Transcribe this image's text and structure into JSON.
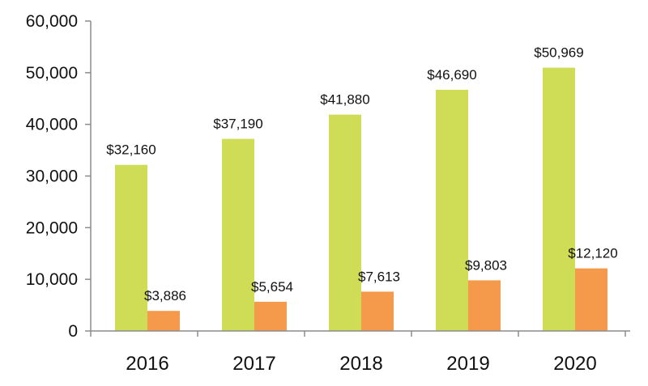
{
  "chart_data": {
    "type": "bar",
    "title": "",
    "xlabel": "",
    "ylabel": "",
    "categories": [
      "2016",
      "2017",
      "2018",
      "2019",
      "2020"
    ],
    "series": [
      {
        "values": [
          32160,
          37190,
          41880,
          46690,
          50969
        ],
        "labels": [
          "$32,160",
          "$37,190",
          "$41,880",
          "$46,690",
          "$50,969"
        ],
        "color": "#cfdc55"
      },
      {
        "values": [
          3886,
          5654,
          7613,
          9803,
          12120
        ],
        "labels": [
          "$3,886",
          "$5,654",
          "$7,613",
          "$9,803",
          "$12,120"
        ],
        "color": "#f59a4a"
      }
    ],
    "ylim": [
      0,
      60000
    ],
    "yticks": [
      0,
      10000,
      20000,
      30000,
      40000,
      50000,
      60000
    ],
    "ytick_labels": [
      "0",
      "10,000",
      "20,000",
      "30,000",
      "40,000",
      "50,000",
      "60,000"
    ],
    "grid": false,
    "legend": "none"
  }
}
